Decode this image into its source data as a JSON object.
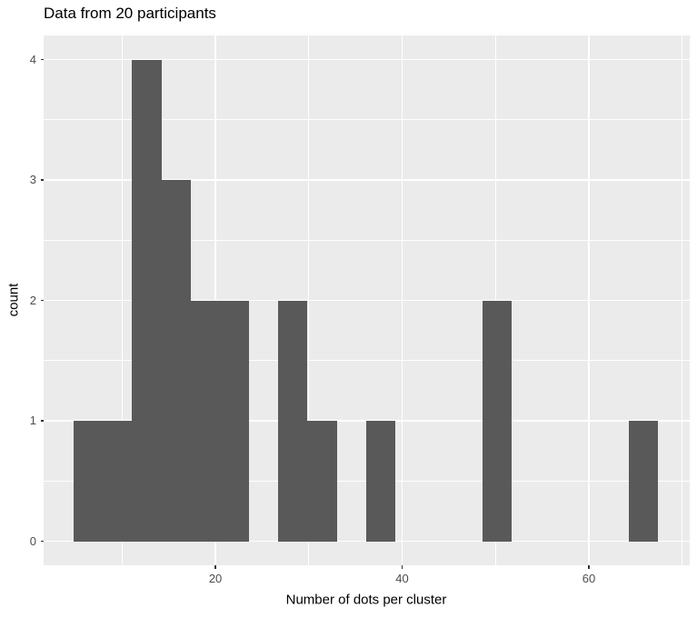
{
  "chart_data": {
    "type": "bar",
    "subtype": "histogram",
    "title": "Data from 20 participants",
    "xlabel": "Number of dots per cluster",
    "ylabel": "count",
    "total_count": 20,
    "bin_start": 4.82,
    "bin_width": 3.13,
    "bin_counts": [
      1,
      1,
      4,
      3,
      2,
      2,
      0,
      2,
      1,
      0,
      1,
      0,
      0,
      0,
      2,
      0,
      0,
      0,
      0,
      1
    ],
    "x_ticks": [
      20,
      40,
      60
    ],
    "y_ticks": [
      0,
      1,
      2,
      3,
      4
    ],
    "x_minor_gridlines": [
      10,
      30,
      50,
      70
    ],
    "y_minor_gridlines": [
      0.5,
      1.5,
      2.5,
      3.5
    ],
    "xlim": [
      1.6,
      70.8
    ],
    "ylim": [
      -0.2,
      4.2
    ],
    "grid": "on",
    "legend_position": "none",
    "colors": {
      "bar_fill": "#595959",
      "panel_background": "#EBEBEB",
      "gridline": "#FFFFFF",
      "tick_text": "#4D4D4D",
      "tick_mark": "#333333",
      "axis_title_text": "#000000",
      "title_text": "#000000",
      "figure_background": "#FFFFFF"
    }
  }
}
